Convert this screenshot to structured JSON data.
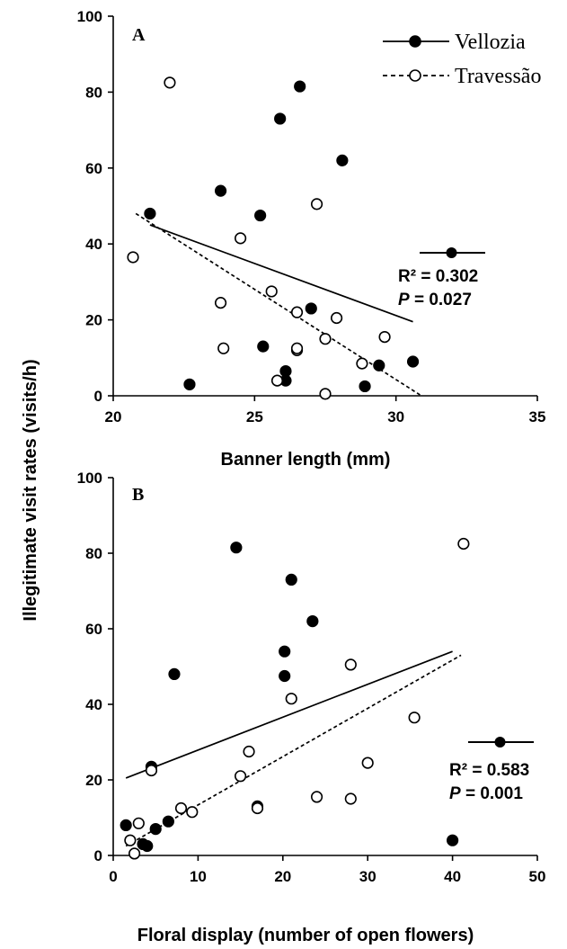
{
  "shared_ylabel": "Illegitimate visit rates (visits/h)",
  "legend": {
    "items": [
      {
        "label": "Vellozia",
        "marker": "filled",
        "line": "solid"
      },
      {
        "label": "Travessão",
        "marker": "open",
        "line": "dashed"
      }
    ]
  },
  "chart_data": [
    {
      "type": "scatter",
      "panel_label": "A",
      "xlabel": "Banner length (mm)",
      "ylabel": "Illegitimate visit rates (visits/h)",
      "xlim": [
        20,
        35
      ],
      "ylim": [
        0,
        100
      ],
      "xticks": [
        20,
        25,
        30,
        35
      ],
      "yticks": [
        0,
        20,
        40,
        60,
        80,
        100
      ],
      "grid": false,
      "legend_position": "top-right",
      "stats": {
        "r2_text": "R² = 0.302",
        "p_prefix": "P",
        "p_value": " = 0.027"
      },
      "series": [
        {
          "name": "Vellozia",
          "marker": "filled",
          "points": [
            [
              21.3,
              48
            ],
            [
              22.7,
              3
            ],
            [
              23.8,
              54
            ],
            [
              25.2,
              47.5
            ],
            [
              25.3,
              13
            ],
            [
              25.9,
              73
            ],
            [
              26.1,
              6.5
            ],
            [
              26.1,
              4
            ],
            [
              26.6,
              81.5
            ],
            [
              27.0,
              23
            ],
            [
              28.1,
              62
            ],
            [
              28.9,
              2.5
            ],
            [
              29.4,
              8
            ],
            [
              30.6,
              9
            ]
          ],
          "fit": {
            "style": "solid",
            "x": [
              21.3,
              30.6
            ],
            "y": [
              45,
              19.5
            ]
          }
        },
        {
          "name": "Travessão",
          "marker": "open",
          "points": [
            [
              20.7,
              36.5
            ],
            [
              22.0,
              82.5
            ],
            [
              23.8,
              24.5
            ],
            [
              23.9,
              12.5
            ],
            [
              24.5,
              41.5
            ],
            [
              25.6,
              27.5
            ],
            [
              25.8,
              4
            ],
            [
              26.5,
              22
            ],
            [
              26.5,
              12
            ],
            [
              26.5,
              12.5
            ],
            [
              27.2,
              50.5
            ],
            [
              27.5,
              15
            ],
            [
              27.5,
              0.5
            ],
            [
              27.9,
              20.5
            ],
            [
              28.8,
              8.5
            ],
            [
              29.6,
              15.5
            ]
          ],
          "fit": {
            "style": "dashed",
            "x": [
              20.8,
              30.9
            ],
            "y": [
              48,
              0
            ]
          }
        }
      ]
    },
    {
      "type": "scatter",
      "panel_label": "B",
      "xlabel": "Floral display (number of open flowers)",
      "ylabel": "Illegitimate visit rates (visits/h)",
      "xlim": [
        0,
        50
      ],
      "ylim": [
        0,
        100
      ],
      "xticks": [
        0,
        10,
        20,
        30,
        40,
        50
      ],
      "yticks": [
        0,
        20,
        40,
        60,
        80,
        100
      ],
      "grid": false,
      "stats": {
        "r2_text": "R² = 0.583",
        "p_prefix": "P",
        "p_value": " = 0.001"
      },
      "series": [
        {
          "name": "Vellozia",
          "marker": "filled",
          "points": [
            [
              1.5,
              8
            ],
            [
              3.5,
              3
            ],
            [
              4,
              2.5
            ],
            [
              4.5,
              23.5
            ],
            [
              5,
              7
            ],
            [
              6.5,
              9
            ],
            [
              7.2,
              48
            ],
            [
              14.5,
              81.5
            ],
            [
              17,
              13
            ],
            [
              20.2,
              54
            ],
            [
              20.2,
              47.5
            ],
            [
              21,
              73
            ],
            [
              23.5,
              62
            ],
            [
              40,
              4
            ]
          ],
          "fit": {
            "style": "solid",
            "x": [
              1.5,
              40
            ],
            "y": [
              20.5,
              54
            ]
          }
        },
        {
          "name": "Travessão",
          "marker": "open",
          "points": [
            [
              2,
              4
            ],
            [
              2.5,
              0.5
            ],
            [
              3,
              8.5
            ],
            [
              4.5,
              22.5
            ],
            [
              8,
              12.5
            ],
            [
              9.3,
              11.5
            ],
            [
              15,
              21
            ],
            [
              16,
              27.5
            ],
            [
              17,
              12.5
            ],
            [
              21,
              41.5
            ],
            [
              24,
              15.5
            ],
            [
              28,
              50.5
            ],
            [
              28,
              15
            ],
            [
              30,
              24.5
            ],
            [
              35.5,
              36.5
            ],
            [
              41.3,
              82.5
            ]
          ],
          "fit": {
            "style": "dashed",
            "x": [
              1.5,
              41
            ],
            "y": [
              2.5,
              53
            ]
          }
        }
      ]
    }
  ]
}
